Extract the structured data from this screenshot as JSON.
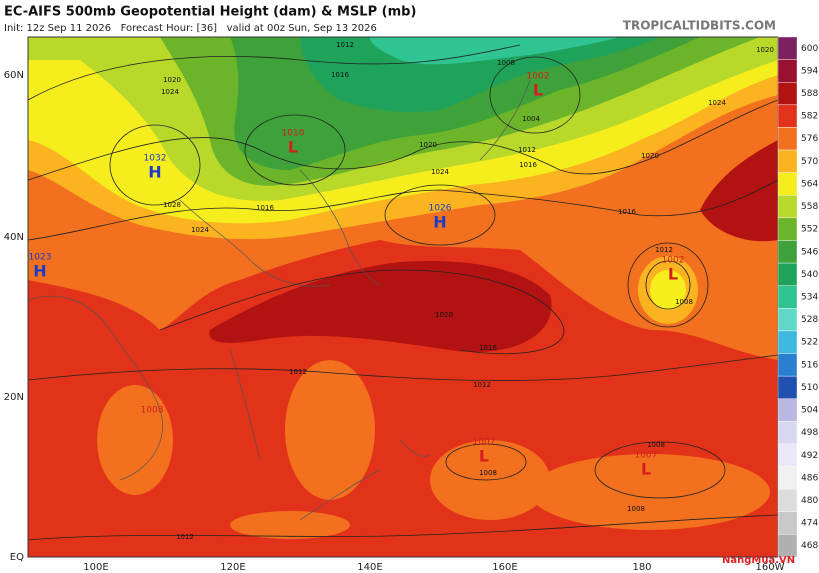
{
  "header": {
    "title": "EC-AIFS 500mb Geopotential Height (dam) & MSLP (mb)",
    "subtitle": "Init: 12z Sep 11 2026   Forecast Hour: [36]   valid at 00z Sun, Sep 13 2026",
    "site": "TROPICALTIDBITS.COM"
  },
  "map": {
    "lat_labels": [
      "60N",
      "40N",
      "20N",
      "EQ"
    ],
    "lon_labels": [
      "100E",
      "120E",
      "140E",
      "160E",
      "180",
      "160W"
    ],
    "pressure_centers": [
      {
        "type": "H",
        "value": "1032"
      },
      {
        "type": "L",
        "value": "1010"
      },
      {
        "type": "L",
        "value": "1002"
      },
      {
        "type": "H",
        "value": "1026"
      },
      {
        "type": "H",
        "value": "1023"
      },
      {
        "type": "L",
        "value": "1002"
      },
      {
        "type": "L",
        "value": "1007"
      },
      {
        "type": "L",
        "value": "1007"
      }
    ],
    "center_value_only": [
      "1008"
    ],
    "contour_labels": [
      "1012",
      "1016",
      "1020",
      "1024",
      "1028",
      "1024",
      "1016",
      "1020",
      "1024",
      "1008",
      "1004",
      "1012",
      "1016",
      "1020",
      "1024",
      "1016",
      "1012",
      "1008",
      "1020",
      "1016",
      "1012",
      "1012",
      "1008",
      "1008",
      "1008",
      "1012",
      "1020"
    ]
  },
  "colorbar": {
    "labels": [
      "600",
      "594",
      "588",
      "582",
      "576",
      "570",
      "564",
      "558",
      "552",
      "546",
      "540",
      "534",
      "528",
      "522",
      "516",
      "510",
      "504",
      "498",
      "492",
      "486",
      "480",
      "474",
      "468"
    ]
  },
  "watermark": "NangMua.VN"
}
